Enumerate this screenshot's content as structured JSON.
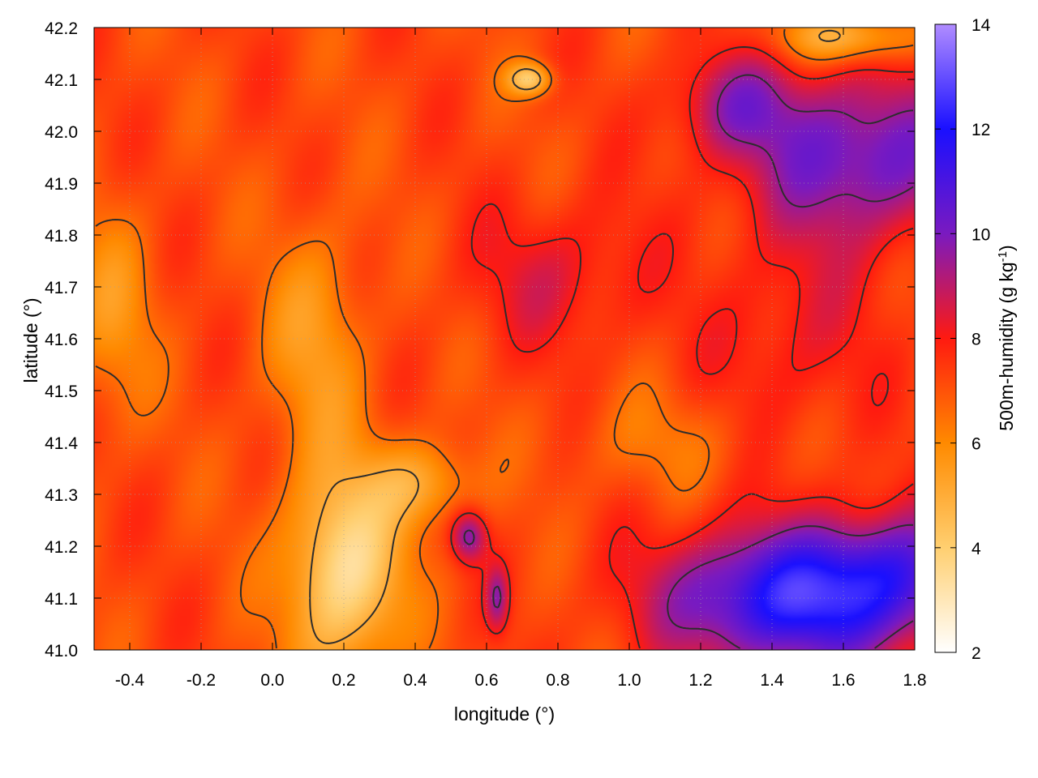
{
  "chart_data": {
    "type": "heatmap",
    "title": "",
    "xlabel": "longitude (°)",
    "ylabel": "latitude (°)",
    "colorbar_label": "500m-humidity (g kg",
    "colorbar_label_sup": "-1",
    "colorbar_label_end": ")",
    "xlim": [
      -0.5,
      1.8
    ],
    "ylim": [
      41.0,
      42.2
    ],
    "zlim": [
      2,
      14
    ],
    "x_ticks": [
      -0.4,
      -0.2,
      0.0,
      0.2,
      0.4,
      0.6,
      0.8,
      1.0,
      1.2,
      1.4,
      1.6,
      1.8
    ],
    "x_tick_labels": [
      "-0.4",
      "-0.2",
      "0.0",
      "0.2",
      "0.4",
      "0.6",
      "0.8",
      "1.0",
      "1.2",
      "1.4",
      "1.6",
      "1.8"
    ],
    "y_ticks": [
      41.0,
      41.1,
      41.2,
      41.3,
      41.4,
      41.5,
      41.6,
      41.7,
      41.8,
      41.9,
      42.0,
      42.1,
      42.2
    ],
    "y_tick_labels": [
      "41.0",
      "41.1",
      "41.2",
      "41.3",
      "41.4",
      "41.5",
      "41.6",
      "41.7",
      "41.8",
      "41.9",
      "42.0",
      "42.1",
      "42.2"
    ],
    "colorbar_ticks": [
      2,
      4,
      6,
      8,
      10,
      12,
      14
    ],
    "colorbar_tick_labels": [
      "2",
      "4",
      "6",
      "8",
      "10",
      "12",
      "14"
    ],
    "colormap": [
      {
        "value": 2,
        "color": "#ffffff"
      },
      {
        "value": 4,
        "color": "#ffcf70"
      },
      {
        "value": 6,
        "color": "#ff8a00"
      },
      {
        "value": 8,
        "color": "#ff1a10"
      },
      {
        "value": 10,
        "color": "#7a1ac0"
      },
      {
        "value": 12,
        "color": "#1a10ff"
      },
      {
        "value": 14,
        "color": "#b08cff"
      }
    ],
    "grid": true,
    "contours": "black contour lines overlaid on the humidity field",
    "humidity_blobs": [
      {
        "lon": 1.45,
        "lat": 41.1,
        "sx": 0.34,
        "sy": 0.13,
        "amp": 5.0
      },
      {
        "lon": 1.75,
        "lat": 41.15,
        "sx": 0.2,
        "sy": 0.12,
        "amp": 2.5
      },
      {
        "lon": 1.65,
        "lat": 41.95,
        "sx": 0.3,
        "sy": 0.16,
        "amp": 3.2
      },
      {
        "lon": 1.3,
        "lat": 42.05,
        "sx": 0.18,
        "sy": 0.1,
        "amp": 2.0
      },
      {
        "lon": 0.55,
        "lat": 41.22,
        "sx": 0.05,
        "sy": 0.05,
        "amp": 2.6
      },
      {
        "lon": 0.63,
        "lat": 41.1,
        "sx": 0.03,
        "sy": 0.06,
        "amp": 2.0
      },
      {
        "lon": 0.8,
        "lat": 41.72,
        "sx": 0.24,
        "sy": 0.14,
        "amp": 1.2
      },
      {
        "lon": 1.45,
        "lat": 41.6,
        "sx": 0.24,
        "sy": 0.2,
        "amp": 1.0
      },
      {
        "lon": 0.2,
        "lat": 41.15,
        "sx": 0.16,
        "sy": 0.2,
        "amp": -3.8
      },
      {
        "lon": 0.42,
        "lat": 41.32,
        "sx": 0.14,
        "sy": 0.08,
        "amp": -2.0
      },
      {
        "lon": 0.12,
        "lat": 41.6,
        "sx": 0.14,
        "sy": 0.22,
        "amp": -1.6
      },
      {
        "lon": -0.45,
        "lat": 41.65,
        "sx": 0.12,
        "sy": 0.2,
        "amp": -1.4
      },
      {
        "lon": 0.72,
        "lat": 42.1,
        "sx": 0.06,
        "sy": 0.03,
        "amp": -3.0
      },
      {
        "lon": 1.62,
        "lat": 42.18,
        "sx": 0.2,
        "sy": 0.05,
        "amp": -2.5
      },
      {
        "lon": 1.1,
        "lat": 41.4,
        "sx": 0.25,
        "sy": 0.1,
        "amp": -0.8
      }
    ],
    "humidity_base": 7.2
  }
}
